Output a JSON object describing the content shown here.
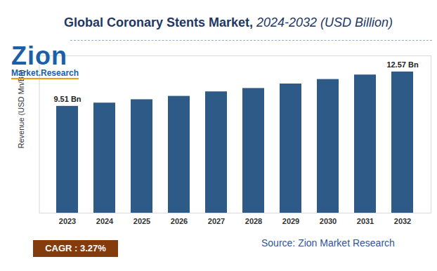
{
  "chart_data": {
    "type": "bar",
    "title": "Global Coronary Stents Market,",
    "subtitle": "2024-2032 (USD Billion)",
    "logo": [
      "Zion",
      "Market.Research"
    ],
    "y_label": "Revenue (USD Mn/Bn)",
    "categories": [
      "2023",
      "2024",
      "2025",
      "2026",
      "2027",
      "2028",
      "2029",
      "2030",
      "2031",
      "2032"
    ],
    "values": [
      9.51,
      9.8,
      10.1,
      10.4,
      10.8,
      11.1,
      11.5,
      11.9,
      12.3,
      12.57
    ],
    "value_labels": [
      "9.51 Bn",
      null,
      null,
      null,
      null,
      null,
      null,
      null,
      null,
      "12.57 Bn"
    ],
    "data_labels": true,
    "color": "#2e5a87",
    "ylim": [
      0,
      14
    ],
    "yticks": [],
    "grid": false,
    "tick_labels": "x",
    "annotations": [
      "CAGR : 3.27%"
    ],
    "source": "Source: Zion Market Research"
  }
}
